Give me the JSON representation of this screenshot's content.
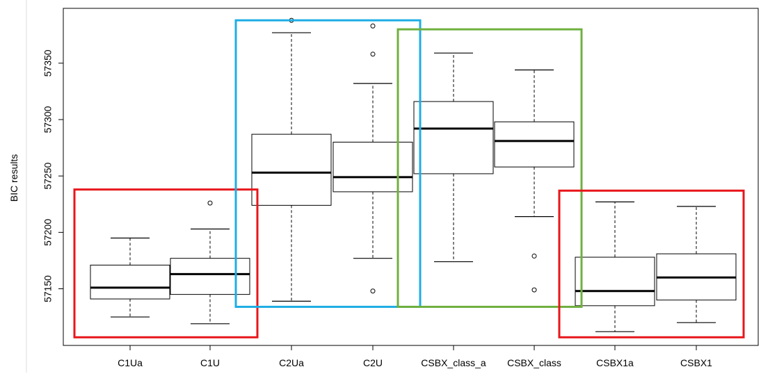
{
  "chart_data": {
    "type": "boxplot",
    "ylabel": "BIC results",
    "xlabel": "",
    "ylim": [
      57100,
      57390
    ],
    "yticks": [
      57150,
      57200,
      57250,
      57300,
      57350
    ],
    "categories": [
      "C1Ua",
      "C1U",
      "C2Ua",
      "C2U",
      "CSBX_class_a",
      "CSBX_class",
      "CSBX1a",
      "CSBX1"
    ],
    "boxes": [
      {
        "label": "C1Ua",
        "whisker_low": 57125,
        "q1": 57141,
        "median": 57151,
        "q3": 57171,
        "whisker_high": 57195,
        "outliers": []
      },
      {
        "label": "C1U",
        "whisker_low": 57119,
        "q1": 57145,
        "median": 57163,
        "q3": 57177,
        "whisker_high": 57203,
        "outliers": [
          57226
        ]
      },
      {
        "label": "C2Ua",
        "whisker_low": 57139,
        "q1": 57224,
        "median": 57253,
        "q3": 57287,
        "whisker_high": 57377,
        "outliers": [
          57388
        ]
      },
      {
        "label": "C2U",
        "whisker_low": 57177,
        "q1": 57236,
        "median": 57249,
        "q3": 57280,
        "whisker_high": 57332,
        "outliers": [
          57148,
          57358,
          57383
        ]
      },
      {
        "label": "CSBX_class_a",
        "whisker_low": 57174,
        "q1": 57252,
        "median": 57292,
        "q3": 57316,
        "whisker_high": 57359,
        "outliers": []
      },
      {
        "label": "CSBX_class",
        "whisker_low": 57214,
        "q1": 57258,
        "median": 57281,
        "q3": 57298,
        "whisker_high": 57344,
        "outliers": [
          57149,
          57179
        ]
      },
      {
        "label": "CSBX1a",
        "whisker_low": 57112,
        "q1": 57135,
        "median": 57148,
        "q3": 57178,
        "whisker_high": 57227,
        "outliers": []
      },
      {
        "label": "CSBX1",
        "whisker_low": 57120,
        "q1": 57140,
        "median": 57160,
        "q3": 57181,
        "whisker_high": 57223,
        "outliers": []
      }
    ],
    "highlight_groups": [
      {
        "categories": [
          "C1Ua",
          "C1U"
        ],
        "color": "#e8161b",
        "y_range": [
          57107,
          57238
        ]
      },
      {
        "categories": [
          "C2Ua",
          "C2U"
        ],
        "color": "#1eaee4",
        "y_range": [
          57134,
          57388
        ]
      },
      {
        "categories": [
          "CSBX_class_a",
          "CSBX_class"
        ],
        "color": "#6fb03f",
        "y_range": [
          57134,
          57380
        ]
      },
      {
        "categories": [
          "CSBX1a",
          "CSBX1"
        ],
        "color": "#e8161b",
        "y_range": [
          57107,
          57237
        ]
      }
    ],
    "grid": false,
    "colors": {
      "box_stroke": "#000000",
      "box_fill": "#ffffff"
    }
  }
}
